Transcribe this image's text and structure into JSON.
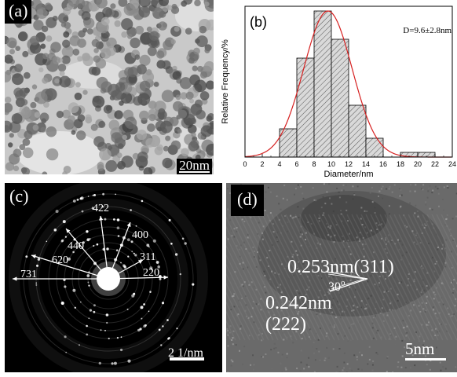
{
  "panels": {
    "a": {
      "label": "(a)",
      "scale_label": "20nm"
    },
    "b": {
      "label": "(b)"
    },
    "c": {
      "label": "(c)",
      "scale_label": "2 1/nm",
      "rings": [
        {
          "label": "422"
        },
        {
          "label": "440"
        },
        {
          "label": "400"
        },
        {
          "label": "311"
        },
        {
          "label": "620"
        },
        {
          "label": "220"
        },
        {
          "label": "731"
        }
      ]
    },
    "d": {
      "label": "(d)",
      "spacing_1": "0.253nm(311)",
      "spacing_2_line1": "0.242nm",
      "spacing_2_line2": "(222)",
      "angle": "30",
      "angle_unit": "o",
      "scale_label": "5nm"
    }
  },
  "chart_data": {
    "type": "bar",
    "categories": [
      "4-6",
      "6-8",
      "8-10",
      "10-12",
      "12-14",
      "14-16",
      "18-20",
      "20-22"
    ],
    "bins": [
      [
        4,
        6
      ],
      [
        6,
        8
      ],
      [
        8,
        10
      ],
      [
        10,
        12
      ],
      [
        12,
        14
      ],
      [
        14,
        16
      ],
      [
        18,
        20
      ],
      [
        20,
        22
      ]
    ],
    "values": [
      6,
      21,
      31,
      25,
      11,
      4,
      1,
      1
    ],
    "fit_curve": {
      "type": "gaussian",
      "mean": 9.6,
      "sigma": 2.8,
      "peak": 31,
      "color": "#d62020"
    },
    "annotation": "D=9.6±2.8nm",
    "xlabel": "Diameter/nm",
    "ylabel": "Relative Frequency/%",
    "xlim": [
      0,
      24
    ],
    "xticks": [
      0,
      2,
      4,
      6,
      8,
      10,
      12,
      14,
      16,
      18,
      20,
      22,
      24
    ],
    "ylim": [
      0,
      32
    ],
    "bar_fill": "#d9d9d9",
    "bar_hatch": "#555555",
    "grid": false
  }
}
